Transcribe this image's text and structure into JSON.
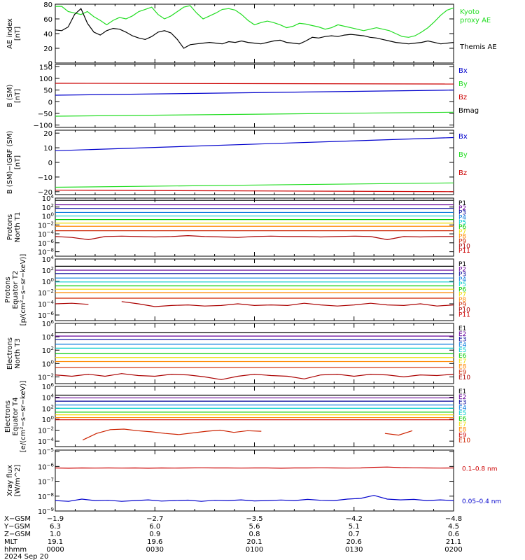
{
  "colors": {
    "black": "#000000",
    "green": "#22dd22",
    "blue": "#0000cc",
    "red": "#cc0000",
    "purple": "#660099",
    "navy": "#000099",
    "azure": "#0077dd",
    "cyan": "#00cccc",
    "teal": "#00bb99",
    "lime": "#00cc00",
    "yellow": "#eedd00",
    "orange": "#ff8800",
    "darkorange": "#ff5500",
    "firebrick": "#cc2200",
    "darkred": "#aa0000"
  },
  "chart_data": [
    {
      "type": "line",
      "ylabel": [
        "AE index",
        "[nT]"
      ],
      "ylim": [
        0,
        80
      ],
      "ticks": [
        0,
        20,
        40,
        60,
        80
      ],
      "tick_labels": [
        "0",
        "20",
        "40",
        "60",
        "80"
      ],
      "series": [
        {
          "name": "Kyoto proxy AE",
          "label_lines": [
            "Kyoto",
            "proxy AE"
          ],
          "color": "green",
          "values": [
            77,
            77,
            70,
            68,
            66,
            70,
            63,
            58,
            52,
            58,
            62,
            60,
            64,
            70,
            73,
            76,
            66,
            60,
            64,
            70,
            76,
            78,
            68,
            60,
            64,
            68,
            73,
            74,
            72,
            66,
            58,
            52,
            55,
            57,
            55,
            52,
            48,
            50,
            54,
            53,
            51,
            49,
            46,
            48,
            52,
            50,
            48,
            46,
            44,
            46,
            48,
            46,
            44,
            40,
            36,
            35,
            37,
            42,
            48,
            56,
            65,
            72,
            75
          ]
        },
        {
          "name": "Themis AE",
          "label_lines": [
            "Themis AE"
          ],
          "color": "black",
          "values": [
            45,
            44,
            49,
            66,
            74,
            54,
            42,
            38,
            44,
            47,
            46,
            42,
            37,
            34,
            32,
            36,
            42,
            44,
            41,
            32,
            20,
            25,
            26,
            27,
            28,
            27,
            26,
            29,
            28,
            30,
            28,
            27,
            26,
            28,
            30,
            31,
            28,
            27,
            26,
            30,
            35,
            34,
            36,
            37,
            36,
            38,
            39,
            38,
            37,
            35,
            34,
            32,
            30,
            28,
            27,
            26,
            27,
            28,
            30,
            28,
            26,
            27,
            28
          ]
        }
      ]
    },
    {
      "type": "line",
      "ylabel": [
        "B (SM)",
        "[nT]"
      ],
      "ylim": [
        -110,
        160
      ],
      "ticks": [
        -100,
        -50,
        0,
        50,
        100,
        150
      ],
      "tick_labels": [
        "−100",
        "−50",
        "0",
        "50",
        "100",
        "150"
      ],
      "series": [
        {
          "name": "Bx",
          "color": "blue",
          "values": [
            28,
            50
          ]
        },
        {
          "name": "By",
          "color": "green",
          "values": [
            -62,
            -45
          ]
        },
        {
          "name": "Bz",
          "color": "red",
          "values": [
            79,
            76
          ]
        },
        {
          "name": "Bmag",
          "color": "black",
          "values": [
            null,
            null
          ]
        }
      ]
    },
    {
      "type": "line",
      "ylabel": [
        "B (SM)−IGRF (SM)",
        "[nT]"
      ],
      "ylim": [
        -22,
        22
      ],
      "ticks": [
        -20,
        -10,
        0,
        10,
        20
      ],
      "tick_labels": [
        "−20",
        "−10",
        "0",
        "10",
        "20"
      ],
      "series": [
        {
          "name": "Bx",
          "color": "blue",
          "values": [
            8,
            17
          ]
        },
        {
          "name": "By",
          "color": "green",
          "values": [
            -17,
            -14
          ]
        },
        {
          "name": "Bz",
          "color": "red",
          "values": [
            -19,
            -20
          ]
        }
      ]
    },
    {
      "type": "line",
      "yscale": "log",
      "ylabel": [
        "Protons",
        "North T1"
      ],
      "ylim_exp": [
        -9,
        4
      ],
      "tick_exp": [
        4,
        2,
        0,
        -2,
        -4,
        -6,
        -8
      ],
      "series": [
        {
          "name": "P1",
          "color": "black",
          "values_exp": [
            3.5
          ]
        },
        {
          "name": "P2",
          "color": "purple",
          "values_exp": [
            2.5
          ]
        },
        {
          "name": "P3",
          "color": "navy",
          "values_exp": [
            1.7
          ]
        },
        {
          "name": "P4",
          "color": "azure",
          "values_exp": [
            0.8
          ]
        },
        {
          "name": "P5",
          "color": "cyan",
          "values_exp": [
            0.0
          ]
        },
        {
          "name": "P6",
          "color": "lime",
          "values_exp": [
            -0.8
          ]
        },
        {
          "name": "P7",
          "color": "yellow",
          "values_exp": [
            -1.6
          ]
        },
        {
          "name": "P8",
          "color": "orange",
          "values_exp": [
            -2.3
          ]
        },
        {
          "name": "P9",
          "color": "firebrick",
          "values_exp": [
            -3.3
          ]
        },
        {
          "name": "P10",
          "color": "darkred",
          "values_exp": [
            -4.6,
            -4.8,
            -5.3,
            -4.6,
            -4.5,
            -4.6,
            -4.7,
            -4.6,
            -4.4,
            -4.6,
            -4.7,
            -4.8,
            -4.6,
            -4.5,
            -4.6,
            -4.6,
            -4.7,
            -4.6,
            -4.5,
            -4.6,
            -5.3,
            -4.6,
            -4.7,
            -4.6,
            -4.6
          ]
        },
        {
          "name": "P11",
          "color": "red",
          "values_exp": [
            null
          ]
        }
      ]
    },
    {
      "type": "line",
      "yscale": "log",
      "ylabel": [
        "Protons",
        "Equator T2",
        "[p/(cm²−s−sr−keV)]"
      ],
      "ylim_exp": [
        -7,
        4
      ],
      "tick_exp": [
        4,
        2,
        0,
        -2,
        -4,
        -6
      ],
      "series": [
        {
          "name": "P1",
          "color": "black",
          "values_exp": [
            2.7
          ]
        },
        {
          "name": "P2",
          "color": "purple",
          "values_exp": [
            2.0
          ]
        },
        {
          "name": "P3",
          "color": "navy",
          "values_exp": [
            1.4
          ]
        },
        {
          "name": "P4",
          "color": "azure",
          "values_exp": [
            0.6
          ]
        },
        {
          "name": "P5",
          "color": "cyan",
          "values_exp": [
            -0.1
          ]
        },
        {
          "name": "P6",
          "color": "lime",
          "values_exp": [
            -0.8
          ]
        },
        {
          "name": "P7",
          "color": "yellow",
          "values_exp": [
            -1.4
          ]
        },
        {
          "name": "P8",
          "color": "orange",
          "values_exp": [
            -2.0
          ]
        },
        {
          "name": "P9",
          "color": "firebrick",
          "values_exp": [
            -3.0
          ]
        },
        {
          "name": "P10",
          "color": "darkred",
          "values_exp": [
            -4.0,
            -3.9,
            -4.1,
            null,
            -3.6,
            -4.0,
            -4.5,
            -4.3,
            -4.2,
            -4.4,
            -4.3,
            -4.0,
            -4.3,
            -4.2,
            -4.3,
            -3.9,
            -4.2,
            -4.4,
            -4.2,
            -3.9,
            -4.2,
            -4.3,
            -4.0,
            -4.4,
            -4.2
          ]
        },
        {
          "name": "P11",
          "color": "red",
          "values_exp": [
            null
          ]
        }
      ]
    },
    {
      "type": "line",
      "yscale": "log",
      "ylabel": [
        "Electrons",
        "North T3"
      ],
      "ylim_exp": [
        -3,
        6
      ],
      "tick_exp": [
        6,
        4,
        2,
        0,
        -2
      ],
      "series": [
        {
          "name": "E1",
          "color": "black",
          "values_exp": [
            4.6
          ]
        },
        {
          "name": "E2",
          "color": "purple",
          "values_exp": [
            4.1
          ]
        },
        {
          "name": "E3",
          "color": "navy",
          "values_exp": [
            3.6
          ]
        },
        {
          "name": "E4",
          "color": "azure",
          "values_exp": [
            2.9
          ]
        },
        {
          "name": "E5",
          "color": "cyan",
          "values_exp": [
            2.3
          ]
        },
        {
          "name": "E6",
          "color": "lime",
          "values_exp": [
            1.5
          ]
        },
        {
          "name": "E7",
          "color": "yellow",
          "values_exp": [
            0.9
          ]
        },
        {
          "name": "E8",
          "color": "orange",
          "values_exp": [
            0.3
          ]
        },
        {
          "name": "E9",
          "color": "firebrick",
          "values_exp": [
            -0.6
          ]
        },
        {
          "name": "E10",
          "color": "darkred",
          "values_exp": [
            -1.7,
            -1.9,
            -1.6,
            -1.9,
            -1.5,
            -1.8,
            -1.9,
            -1.6,
            -1.7,
            -2.0,
            -2.4,
            -1.9,
            -1.6,
            -1.8,
            -1.9,
            -2.3,
            -1.7,
            -1.6,
            -1.9,
            -1.6,
            -1.7,
            -2.0,
            -1.7,
            -1.8,
            -1.6
          ]
        }
      ]
    },
    {
      "type": "line",
      "yscale": "log",
      "ylabel": [
        "Electrons",
        "Equator T4",
        "[e/(cm²−s−sr−keV)]"
      ],
      "ylim_exp": [
        -5,
        6
      ],
      "tick_exp": [
        6,
        4,
        2,
        0,
        -2,
        -4
      ],
      "series": [
        {
          "name": "E1",
          "color": "black",
          "values_exp": [
            4.4
          ]
        },
        {
          "name": "E2",
          "color": "purple",
          "values_exp": [
            3.9
          ]
        },
        {
          "name": "E3",
          "color": "navy",
          "values_exp": [
            3.3
          ]
        },
        {
          "name": "E4",
          "color": "azure",
          "values_exp": [
            2.6
          ]
        },
        {
          "name": "E5",
          "color": "cyan",
          "values_exp": [
            2.0
          ]
        },
        {
          "name": "E6",
          "color": "lime",
          "values_exp": [
            1.3
          ]
        },
        {
          "name": "E7",
          "color": "yellow",
          "values_exp": [
            0.8
          ]
        },
        {
          "name": "E8",
          "color": "orange",
          "values_exp": [
            0.3
          ]
        },
        {
          "name": "E9",
          "color": "red",
          "values_exp": [
            -0.1
          ]
        },
        {
          "name": "E10",
          "color": "firebrick",
          "values_exp": [
            null,
            null,
            -3.8,
            -2.6,
            -1.9,
            -1.8,
            -2.1,
            -2.3,
            -2.6,
            -2.8,
            -2.5,
            -2.2,
            -2.0,
            -2.4,
            -2.1,
            -2.2,
            null,
            null,
            -2.0,
            null,
            null,
            null,
            -2.0,
            null,
            -2.6,
            -2.9,
            -2.1,
            null,
            null,
            null
          ]
        }
      ]
    },
    {
      "type": "line",
      "yscale": "log",
      "ylabel": [
        "Xray flux",
        "[W/m^2]"
      ],
      "ylim_exp": [
        -9,
        -4.9
      ],
      "tick_exp": [
        -5,
        -6,
        -7,
        -8,
        -9
      ],
      "series": [
        {
          "name": "0.1–0.8 nm",
          "color": "red",
          "values_exp": [
            -6.1,
            -6.12,
            -6.1,
            -6.11,
            -6.1,
            -6.11,
            -6.1,
            -6.12,
            -6.1,
            -6.11,
            -6.1,
            -6.09,
            -6.1,
            -6.1,
            -6.11,
            -6.1,
            -6.1,
            -6.12,
            -6.1,
            -6.1,
            -6.09,
            -6.1,
            -6.11,
            -6.1,
            -6.06,
            -6.04,
            -6.08,
            -6.09,
            -6.1,
            -6.11,
            -6.1
          ]
        },
        {
          "name": "0.05–0.4 nm",
          "color": "blue",
          "values_exp": [
            -8.3,
            -8.35,
            -8.2,
            -8.3,
            -8.28,
            -8.35,
            -8.3,
            -8.25,
            -8.33,
            -8.3,
            -8.27,
            -8.35,
            -8.28,
            -8.3,
            -8.25,
            -8.32,
            -8.3,
            -8.26,
            -8.3,
            -8.22,
            -8.28,
            -8.3,
            -8.2,
            -8.15,
            -7.95,
            -8.2,
            -8.25,
            -8.22,
            -8.3,
            -8.25,
            -8.3
          ]
        }
      ]
    }
  ],
  "x_axis": {
    "row_labels": [
      "X−GSM",
      "Y−GSM",
      "Z−GSM",
      "MLT",
      "hhmm"
    ],
    "date": "2024 Sep 20",
    "ticks": [
      {
        "xgsm": "−1.9",
        "ygsm": "6.3",
        "zgsm": "1.0",
        "mlt": "19.1",
        "hhmm": "0000"
      },
      {
        "xgsm": "−2.7",
        "ygsm": "6.0",
        "zgsm": "0.9",
        "mlt": "19.6",
        "hhmm": "0030"
      },
      {
        "xgsm": "−3.5",
        "ygsm": "5.6",
        "zgsm": "0.8",
        "mlt": "20.1",
        "hhmm": "0100"
      },
      {
        "xgsm": "−4.2",
        "ygsm": "5.1",
        "zgsm": "0.7",
        "mlt": "20.6",
        "hhmm": "0130"
      },
      {
        "xgsm": "−4.8",
        "ygsm": "4.5",
        "zgsm": "0.6",
        "mlt": "21.1",
        "hhmm": "0200"
      }
    ]
  }
}
